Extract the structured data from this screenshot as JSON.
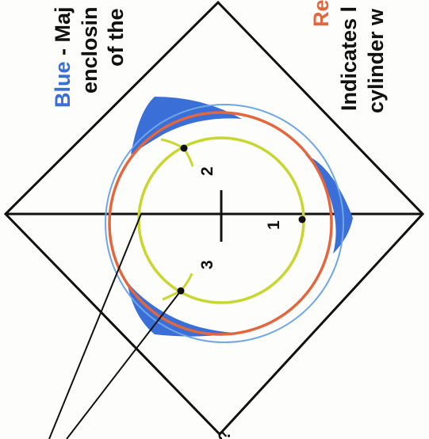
{
  "legend": {
    "blue_label": "Blue",
    "blue_text_line1": " - Maj",
    "blue_text_line2": "enclosin",
    "blue_text_line3": "of the",
    "red_label": "Re",
    "red_text_line1": "Indicates l",
    "red_text_line2": "cylinder w"
  },
  "points": {
    "p1": "1",
    "p2": "2",
    "p3": "3"
  },
  "bottom_mark": "?",
  "colors": {
    "blue": "#3a6fd8",
    "blue_circle": "#6fa6e6",
    "red": "#e2673f",
    "yellow": "#c8d630",
    "black": "#111111"
  }
}
